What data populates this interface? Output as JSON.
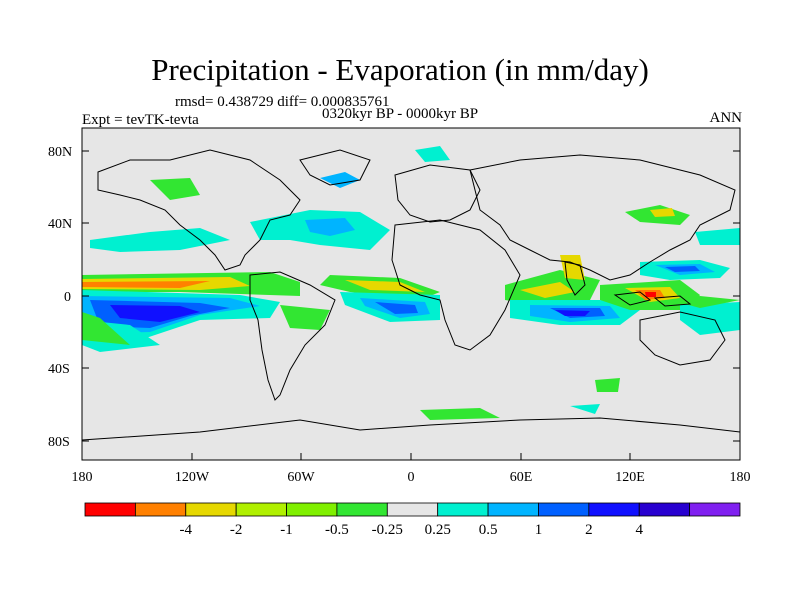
{
  "title": "Precipitation - Evaporation (in mm/day)",
  "stats": "rmsd= 0.438729  diff= 0.000835761",
  "period": "0320kyr BP - 0000kyr BP",
  "expt": "Expt = tevTK-tevta",
  "season": "ANN",
  "axes": {
    "lat_ticks": [
      "80N",
      "40N",
      "0",
      "40S",
      "80S"
    ],
    "lon_ticks": [
      "180",
      "120W",
      "60W",
      "0",
      "60E",
      "120E",
      "180"
    ]
  },
  "colorbar": {
    "colors": [
      "#ff0000",
      "#ff8000",
      "#e6d800",
      "#b0f000",
      "#80f000",
      "#32e632",
      "#e6e6e6",
      "#00f0d0",
      "#00b4ff",
      "#0060ff",
      "#1010ff",
      "#2800d0",
      "#8020f0"
    ],
    "labels": [
      "-4",
      "-2",
      "-1",
      "-0.5",
      "-0.25",
      "0.25",
      "0.5",
      "1",
      "2",
      "4"
    ]
  },
  "colors": {
    "background": "#e6e6e6",
    "coast": "#000000"
  }
}
